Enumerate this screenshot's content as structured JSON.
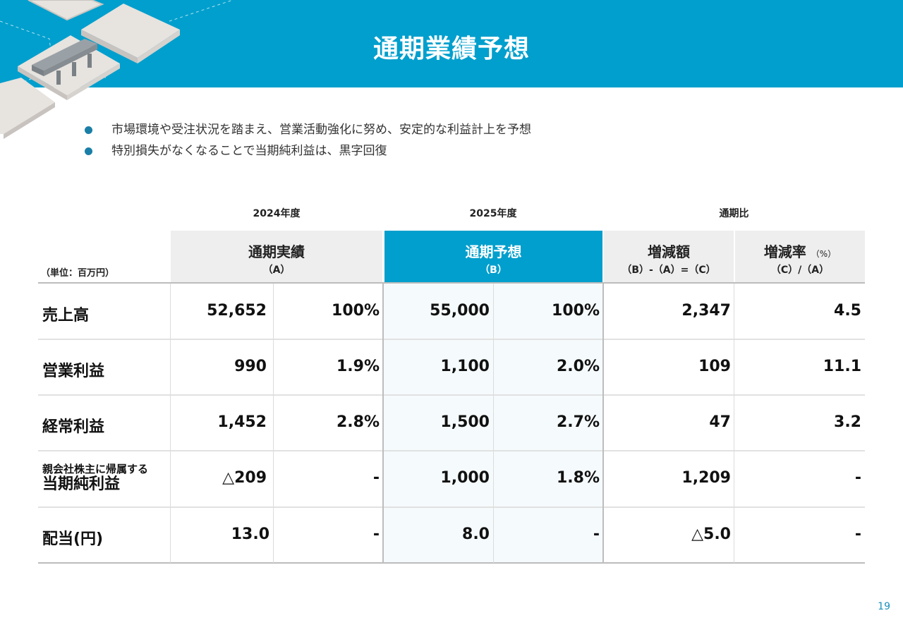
{
  "title": "通期業績予想",
  "bullets": [
    "市場環境や受注状況を踏まえ、営業活動強化に努め、安定的な利益計上を予想",
    "特別損失がなくなることで当期純利益は、黒字回復"
  ],
  "table": {
    "unit": "（単位：百万円）",
    "periods": {
      "fy2024": "2024年度",
      "fy2025": "2025年度",
      "compare": "通期比"
    },
    "headers": {
      "actual": {
        "main": "通期実績",
        "sub": "（A）"
      },
      "forecast": {
        "main": "通期予想",
        "sub": "（B）"
      },
      "diff": {
        "main": "増減額",
        "sub": "（B）-（A）=（C）"
      },
      "rate": {
        "main": "増減率",
        "pct": "（%）",
        "sub": "（C）/（A）"
      }
    },
    "rows": [
      {
        "label": "売上高",
        "a": "52,652",
        "a_pct": "100%",
        "b": "55,000",
        "b_pct": "100%",
        "diff": "2,347",
        "rate": "4.5"
      },
      {
        "label": "営業利益",
        "a": "990",
        "a_pct": "1.9%",
        "b": "1,100",
        "b_pct": "2.0%",
        "diff": "109",
        "rate": "11.1"
      },
      {
        "label": "経常利益",
        "a": "1,452",
        "a_pct": "2.8%",
        "b": "1,500",
        "b_pct": "2.7%",
        "diff": "47",
        "rate": "3.2"
      },
      {
        "label_small": "親会社株主に帰属する",
        "label": "当期純利益",
        "a": "△209",
        "a_pct": "-",
        "b": "1,000",
        "b_pct": "1.8%",
        "diff": "1,209",
        "rate": "-"
      },
      {
        "label": "配当(円)",
        "a": "13.0",
        "a_pct": "-",
        "b": "8.0",
        "b_pct": "-",
        "diff": "△5.0",
        "rate": "-"
      }
    ]
  },
  "page_number": "19",
  "colors": {
    "accent": "#009fcd",
    "header_gray": "#eeeeee",
    "bullet": "#1a7fa7"
  }
}
